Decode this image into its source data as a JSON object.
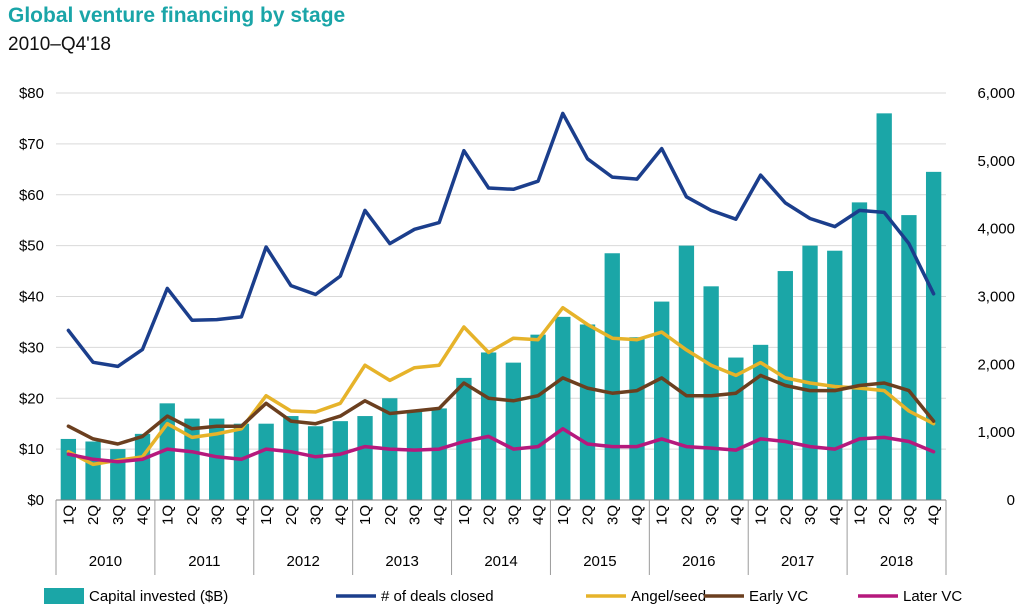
{
  "chart_data": {
    "type": "bar",
    "title": "Global venture financing by stage",
    "subtitle": "2010–Q4'18",
    "quarters": [
      "1Q",
      "2Q",
      "3Q",
      "4Q",
      "1Q",
      "2Q",
      "3Q",
      "4Q",
      "1Q",
      "2Q",
      "3Q",
      "4Q",
      "1Q",
      "2Q",
      "3Q",
      "4Q",
      "1Q",
      "2Q",
      "3Q",
      "4Q",
      "1Q",
      "2Q",
      "3Q",
      "4Q",
      "1Q",
      "2Q",
      "3Q",
      "4Q",
      "1Q",
      "2Q",
      "3Q",
      "4Q",
      "1Q",
      "2Q",
      "3Q",
      "4Q"
    ],
    "years": [
      "2010",
      "2011",
      "2012",
      "2013",
      "2014",
      "2015",
      "2016",
      "2017",
      "2018"
    ],
    "y_left": {
      "min": 0,
      "max": 80,
      "ticks": [
        0,
        10,
        20,
        30,
        40,
        50,
        60,
        70,
        80
      ],
      "tick_labels": [
        "$0",
        "$10",
        "$20",
        "$30",
        "$40",
        "$50",
        "$60",
        "$70",
        "$80"
      ]
    },
    "y_right": {
      "min": 0,
      "max": 6000,
      "ticks": [
        0,
        1000,
        2000,
        3000,
        4000,
        5000,
        6000
      ],
      "tick_labels": [
        "0",
        "1,000",
        "2,000",
        "3,000",
        "4,000",
        "5,000",
        "6,000"
      ]
    },
    "series": [
      {
        "name": "Capital invested ($B)",
        "kind": "bar",
        "axis": "left",
        "color": "#1ba6a7",
        "values": [
          12,
          11.5,
          10,
          13,
          19,
          16,
          16,
          15,
          15,
          16.5,
          14.5,
          15.5,
          16.5,
          20,
          17.5,
          18,
          24,
          29,
          27,
          32.5,
          36,
          34.5,
          48.5,
          32,
          39,
          50,
          42,
          28,
          30.5,
          45,
          50,
          49,
          58.5,
          76,
          56,
          64.5
        ]
      },
      {
        "name": "# of deals closed",
        "kind": "line",
        "axis": "right",
        "color": "#1b3e8c",
        "values": [
          2500,
          2030,
          1970,
          2220,
          3120,
          2650,
          2660,
          2700,
          3730,
          3160,
          3030,
          3300,
          4270,
          3780,
          3990,
          4090,
          5150,
          4600,
          4580,
          4700,
          5700,
          5030,
          4760,
          4730,
          5180,
          4470,
          4270,
          4140,
          4790,
          4380,
          4150,
          4030,
          4270,
          4240,
          3780,
          3040
        ]
      },
      {
        "name": "Angel/seed",
        "kind": "line",
        "axis": "left",
        "color": "#e6b32a",
        "values": [
          9.5,
          7,
          7.8,
          8.5,
          15,
          12.3,
          13,
          14,
          20.5,
          17.5,
          17.3,
          19,
          26.5,
          23.5,
          26,
          26.5,
          34,
          29,
          31.8,
          31.5,
          37.8,
          34.5,
          31.8,
          31.5,
          33,
          29.5,
          26.5,
          24.5,
          27,
          24,
          23,
          22.3,
          22,
          21.5,
          17.5,
          15
        ]
      },
      {
        "name": "Early VC",
        "kind": "line",
        "axis": "left",
        "color": "#6b3f1f",
        "values": [
          14.5,
          12,
          11,
          12.5,
          16.5,
          14,
          14.5,
          14.5,
          19,
          15.5,
          15,
          16.5,
          19.5,
          17,
          17.5,
          18,
          23,
          20,
          19.5,
          20.5,
          24,
          22,
          21,
          21.5,
          24,
          20.5,
          20.5,
          21,
          24.5,
          22.5,
          21.5,
          21.5,
          22.5,
          23,
          21.5,
          15.5
        ]
      },
      {
        "name": "Later VC",
        "kind": "line",
        "axis": "left",
        "color": "#b5197d",
        "values": [
          9,
          8,
          7.5,
          8,
          10,
          9.5,
          8.5,
          8,
          10,
          9.5,
          8.5,
          9,
          10.5,
          10,
          9.8,
          10,
          11.5,
          12.5,
          10,
          10.5,
          14,
          11,
          10.5,
          10.5,
          12,
          10.5,
          10.2,
          9.8,
          12,
          11.5,
          10.5,
          10,
          12,
          12.3,
          11.5,
          9.5
        ]
      }
    ],
    "legend_placement": "bottom",
    "grid": true
  }
}
